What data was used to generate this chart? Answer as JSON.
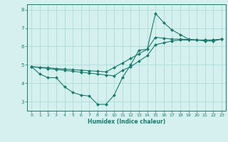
{
  "line1": {
    "x": [
      0,
      1,
      2,
      3,
      4,
      5,
      6,
      7,
      8,
      9,
      10,
      11,
      12,
      13,
      14,
      15,
      16,
      17,
      18,
      19,
      20,
      21,
      22,
      23
    ],
    "y": [
      4.9,
      4.5,
      4.3,
      4.3,
      3.8,
      3.5,
      3.35,
      3.3,
      2.85,
      2.85,
      3.35,
      4.3,
      5.0,
      5.8,
      5.85,
      7.8,
      7.3,
      6.9,
      6.65,
      6.4,
      6.35,
      6.3,
      6.3,
      6.4
    ],
    "color": "#1a7a6e",
    "marker": "D",
    "markersize": 2.0,
    "linewidth": 0.8
  },
  "line2": {
    "x": [
      0,
      1,
      2,
      3,
      4,
      5,
      6,
      7,
      8,
      9,
      10,
      11,
      12,
      13,
      14,
      15,
      16,
      17,
      18,
      19,
      20,
      21,
      22,
      23
    ],
    "y": [
      4.9,
      4.85,
      4.8,
      4.75,
      4.7,
      4.65,
      4.6,
      4.55,
      4.5,
      4.45,
      4.4,
      4.7,
      4.9,
      5.2,
      5.5,
      6.1,
      6.2,
      6.3,
      6.35,
      6.35,
      6.35,
      6.35,
      6.35,
      6.4
    ],
    "color": "#1a7a6e",
    "marker": "D",
    "markersize": 2.0,
    "linewidth": 0.8
  },
  "line3": {
    "x": [
      0,
      1,
      2,
      3,
      4,
      5,
      6,
      7,
      8,
      9,
      10,
      11,
      12,
      13,
      14,
      15,
      16,
      17,
      18,
      19,
      20,
      21,
      22,
      23
    ],
    "y": [
      4.9,
      4.87,
      4.84,
      4.8,
      4.77,
      4.74,
      4.71,
      4.68,
      4.65,
      4.62,
      4.85,
      5.1,
      5.35,
      5.6,
      5.85,
      6.5,
      6.45,
      6.4,
      6.4,
      6.38,
      6.35,
      6.35,
      6.35,
      6.4
    ],
    "color": "#1a7a6e",
    "marker": "D",
    "markersize": 2.0,
    "linewidth": 0.8
  },
  "background_color": "#d5f0ee",
  "grid_color": "#aaddd8",
  "axis_color": "#1a7a6e",
  "tick_color": "#1a7a6e",
  "xlabel": "Humidex (Indice chaleur)",
  "xlim": [
    -0.5,
    23.5
  ],
  "ylim": [
    2.5,
    8.3
  ],
  "yticks": [
    3,
    4,
    5,
    6,
    7,
    8
  ],
  "xticks": [
    0,
    1,
    2,
    3,
    4,
    5,
    6,
    7,
    8,
    9,
    10,
    11,
    12,
    13,
    14,
    15,
    16,
    17,
    18,
    19,
    20,
    21,
    22,
    23
  ],
  "xlabel_fontsize": 5.5,
  "tick_fontsize": 4.5,
  "ytick_fontsize": 5.0
}
